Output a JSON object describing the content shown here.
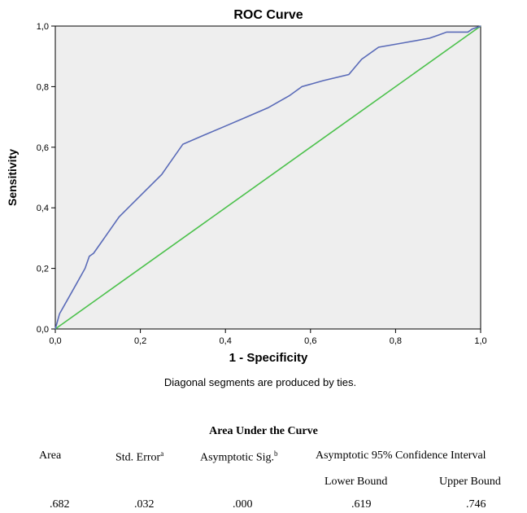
{
  "chart_data": {
    "type": "line",
    "title": "ROC Curve",
    "xlabel": "1 - Specificity",
    "ylabel": "Sensitivity",
    "xlim": [
      0,
      1
    ],
    "ylim": [
      0,
      1
    ],
    "x_ticks": [
      "0,0",
      "0,2",
      "0,4",
      "0,6",
      "0,8",
      "1,0"
    ],
    "y_ticks": [
      "0,0",
      "0,2",
      "0,4",
      "0,6",
      "0,8",
      "1,0"
    ],
    "grid": false,
    "series": [
      {
        "color": "#5a6bb8",
        "x": [
          0.0,
          0.01,
          0.03,
          0.05,
          0.07,
          0.08,
          0.09,
          0.12,
          0.15,
          0.2,
          0.25,
          0.27,
          0.3,
          0.35,
          0.4,
          0.45,
          0.5,
          0.55,
          0.58,
          0.63,
          0.69,
          0.72,
          0.76,
          0.82,
          0.88,
          0.9,
          0.92,
          0.95,
          0.96,
          0.97,
          0.98,
          1.0
        ],
        "y": [
          0.0,
          0.05,
          0.1,
          0.15,
          0.2,
          0.24,
          0.25,
          0.31,
          0.37,
          0.44,
          0.51,
          0.55,
          0.61,
          0.64,
          0.67,
          0.7,
          0.73,
          0.77,
          0.8,
          0.82,
          0.84,
          0.89,
          0.93,
          0.945,
          0.96,
          0.97,
          0.98,
          0.98,
          0.98,
          0.98,
          0.99,
          1.0
        ]
      },
      {
        "color": "#4cc14c",
        "x": [
          0,
          1
        ],
        "y": [
          0,
          1
        ]
      }
    ],
    "plot_background": "#eeeeee"
  },
  "note": "Diagonal segments are produced by ties.",
  "auc_table": {
    "title": "Area Under the Curve",
    "headers": [
      "Area",
      "Std. Error",
      "Asymptotic Sig.",
      "Asymptotic 95% Confidence Interval"
    ],
    "header_marks": [
      "",
      "a",
      "b",
      ""
    ],
    "subheaders": [
      "Lower Bound",
      "Upper Bound"
    ],
    "values": [
      ".682",
      ".032",
      ".000",
      ".619",
      ".746"
    ]
  }
}
